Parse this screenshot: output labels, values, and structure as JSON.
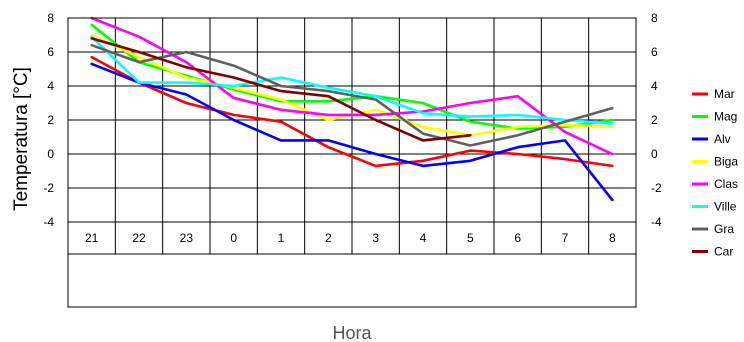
{
  "chart_data": {
    "type": "line",
    "title": "",
    "xlabel": "Hora",
    "ylabel": "Temperatura [°C]",
    "categories": [
      "21",
      "22",
      "23",
      "0",
      "1",
      "2",
      "3",
      "4",
      "5",
      "6",
      "7",
      "8"
    ],
    "ylim": [
      -4,
      8
    ],
    "yticks": [
      "-4",
      "-2",
      "0",
      "2",
      "4",
      "6",
      "8"
    ],
    "grid": true,
    "legend_position": "right",
    "series": [
      {
        "name": "Mar",
        "color": "#ff0000",
        "values": [
          5.7,
          4.2,
          3.0,
          2.3,
          1.9,
          0.4,
          -0.7,
          -0.4,
          0.2,
          0.0,
          -0.3,
          -0.7
        ]
      },
      {
        "name": "Mag",
        "color": "#00ff00",
        "values": [
          7.6,
          5.4,
          4.6,
          3.8,
          3.1,
          3.1,
          3.4,
          3.0,
          1.9,
          1.5,
          1.6,
          2.0
        ]
      },
      {
        "name": "Alv",
        "color": "#0000ff",
        "values": [
          5.3,
          4.2,
          3.5,
          2.0,
          0.8,
          0.8,
          0.0,
          -0.7,
          -0.4,
          0.4,
          0.8,
          -2.7
        ]
      },
      {
        "name": "Biga",
        "color": "#ffff00",
        "values": [
          7.0,
          5.7,
          4.5,
          3.9,
          3.2,
          2.0,
          2.6,
          1.6,
          1.1,
          1.6,
          1.7,
          1.6
        ]
      },
      {
        "name": "Clas",
        "color": "#ff00ff",
        "values": [
          8.0,
          6.9,
          5.4,
          3.3,
          2.6,
          2.3,
          2.3,
          2.5,
          3.0,
          3.4,
          1.3,
          0.0
        ]
      },
      {
        "name": "Ville",
        "color": "#00ffff",
        "values": [
          6.9,
          4.2,
          4.2,
          4.0,
          4.5,
          3.9,
          3.4,
          2.4,
          2.2,
          2.3,
          2.0,
          1.8
        ]
      },
      {
        "name": "Gra",
        "color": "#606060",
        "values": [
          6.4,
          5.4,
          6.0,
          5.2,
          4.0,
          3.7,
          3.2,
          1.2,
          0.5,
          1.1,
          1.9,
          2.7
        ]
      },
      {
        "name": "Car",
        "color": "#800000",
        "values": [
          6.8,
          6.0,
          5.1,
          4.5,
          3.7,
          3.4,
          2.0,
          0.8,
          1.1,
          null,
          null,
          null
        ]
      }
    ]
  }
}
